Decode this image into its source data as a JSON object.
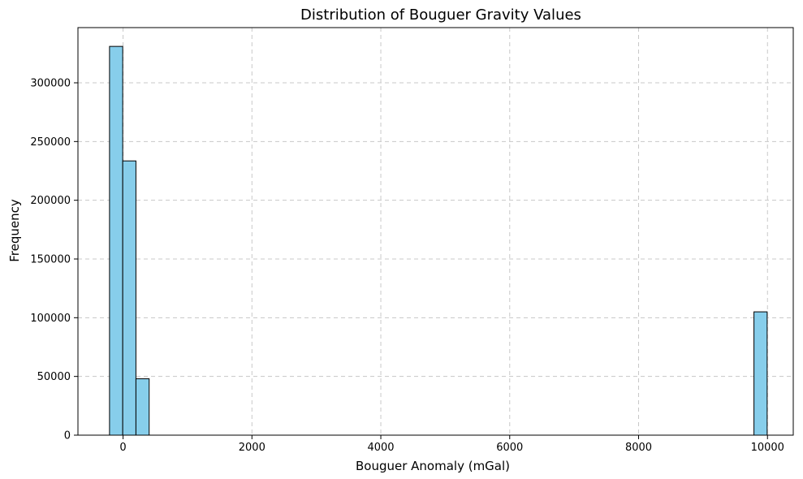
{
  "chart_data": {
    "type": "bar",
    "title": "Distribution of Bouguer Gravity Values",
    "xlabel": "Bouguer Anomaly (mGal)",
    "ylabel": "Frequency",
    "xlim": [
      -700,
      10400
    ],
    "ylim": [
      0,
      347000
    ],
    "xticks": [
      0,
      2000,
      4000,
      6000,
      8000,
      10000
    ],
    "yticks": [
      0,
      50000,
      100000,
      150000,
      200000,
      250000,
      300000
    ],
    "grid": true,
    "bar_color": "#87CEEB",
    "edge_color": "#000000",
    "grid_color": "#c8c8c8",
    "bins": [
      {
        "x0": -210,
        "x1": -5,
        "value": 331000
      },
      {
        "x0": -5,
        "x1": 200,
        "value": 233500
      },
      {
        "x0": 200,
        "x1": 405,
        "value": 48000
      },
      {
        "x0": 9790,
        "x1": 9995,
        "value": 105000
      }
    ]
  }
}
